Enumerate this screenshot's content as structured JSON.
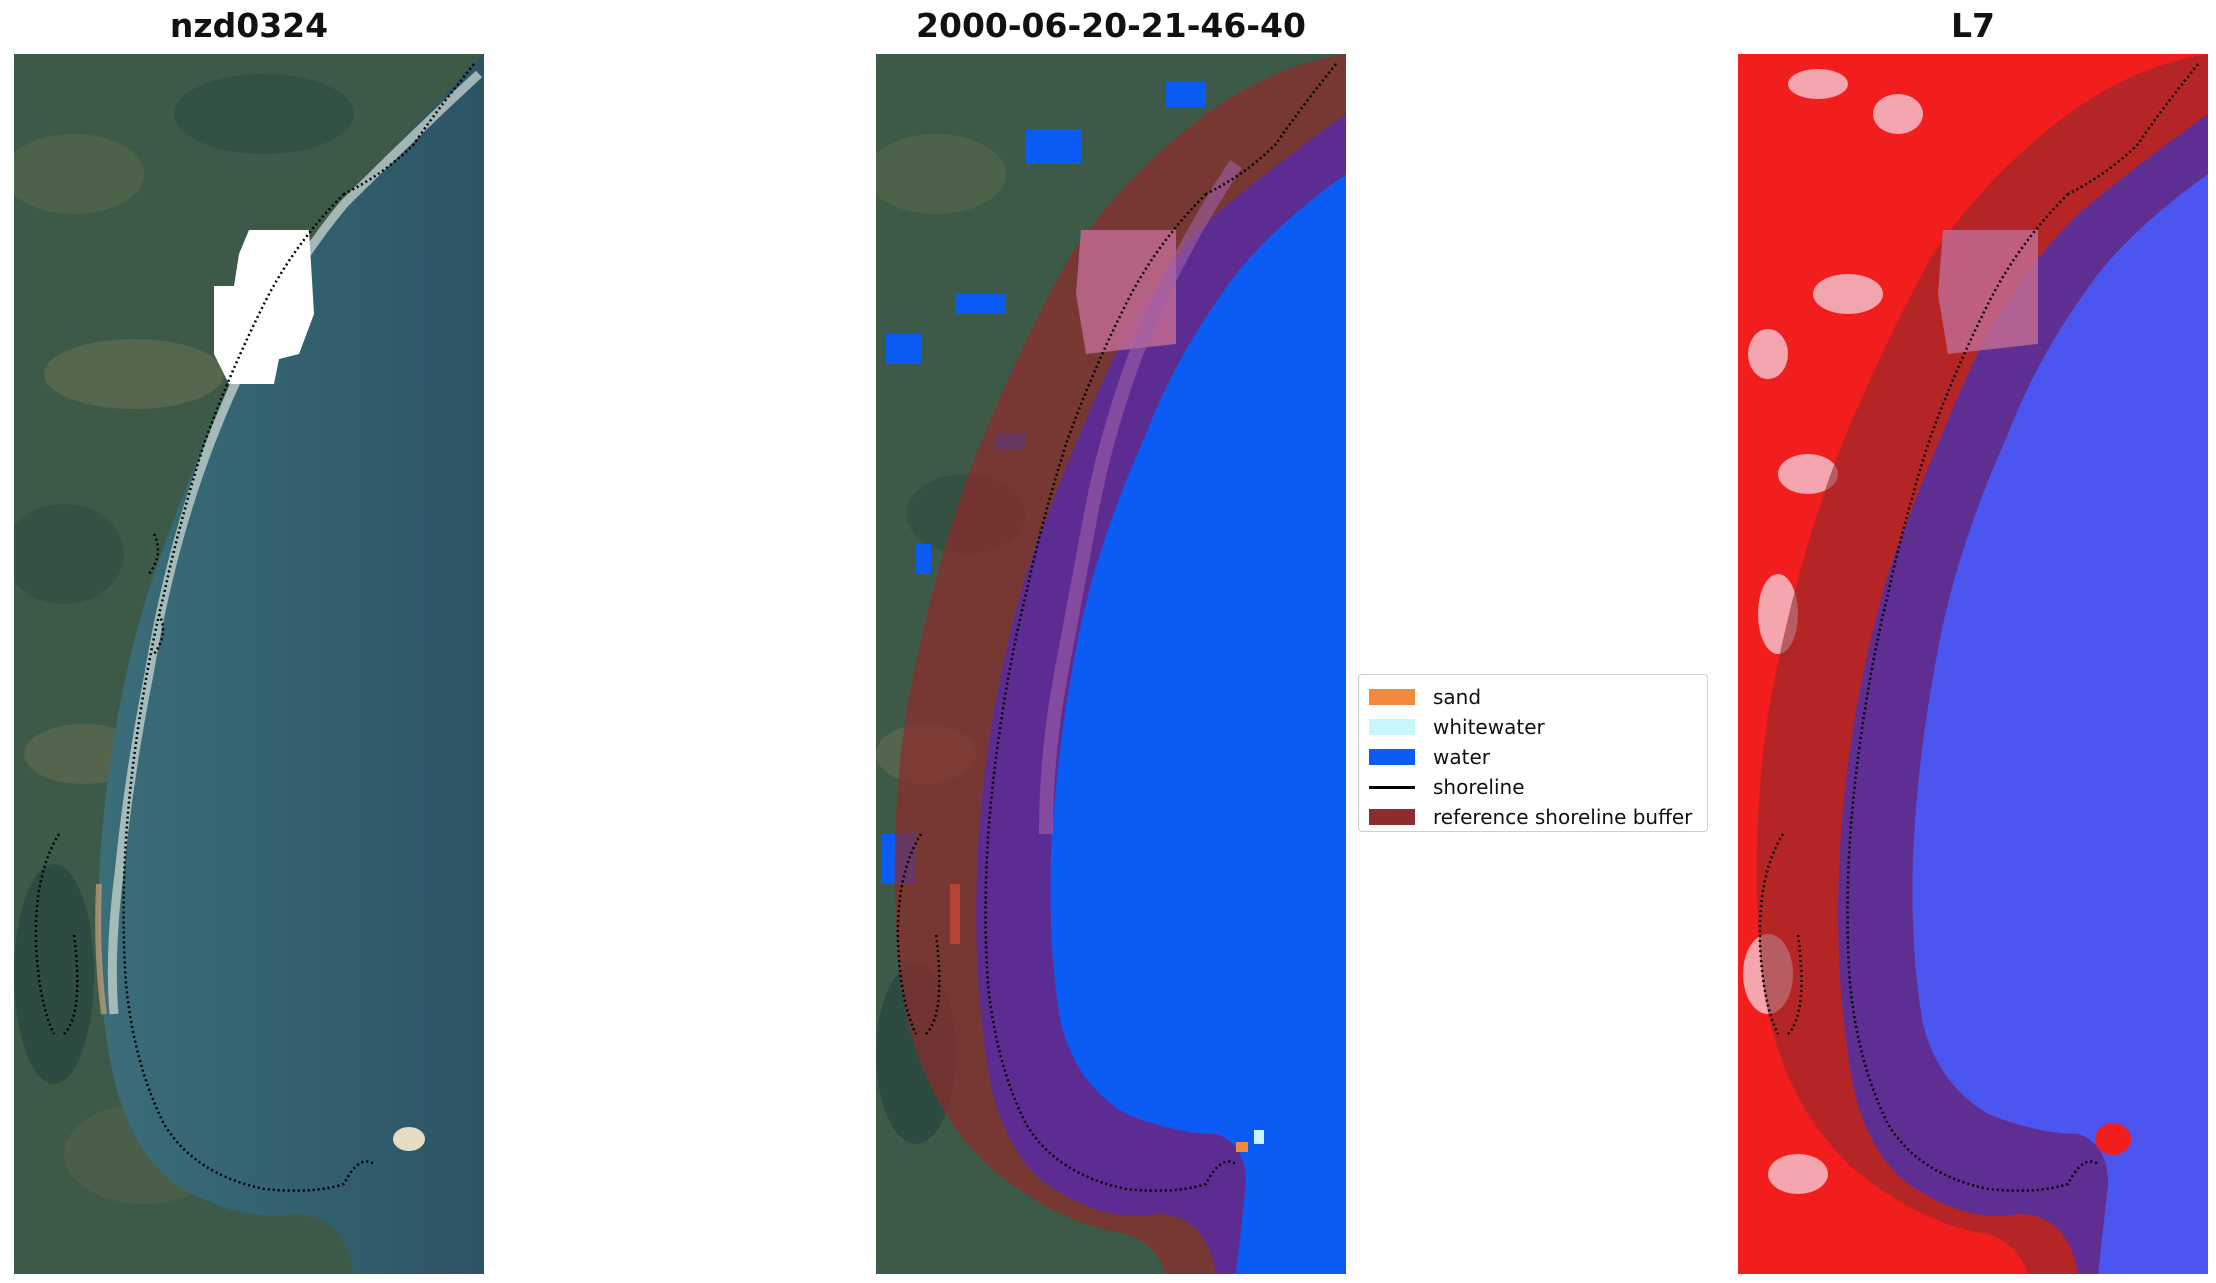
{
  "panels": [
    {
      "title": "nzd0324",
      "kind": "rgb"
    },
    {
      "title": "2000-06-20-21-46-40",
      "kind": "classified"
    },
    {
      "title": "L7",
      "kind": "index"
    }
  ],
  "legend": {
    "items": [
      {
        "label": "sand",
        "color": "#f3893a",
        "shape": "patch"
      },
      {
        "label": "whitewater",
        "color": "#c7f7fa",
        "shape": "patch"
      },
      {
        "label": "water",
        "color": "#0a5cf5",
        "shape": "patch"
      },
      {
        "label": "shoreline",
        "color": "#000000",
        "shape": "line"
      },
      {
        "label": "reference shoreline buffer",
        "color": "#8e2b2d",
        "shape": "patch"
      }
    ]
  },
  "colors": {
    "land_rgb": "#3f5a4e",
    "sea_rgb": "#33606f",
    "water_class": "#0a5cf5",
    "buffer": "#8e2b2d",
    "index_land": "#f21d1d",
    "index_water": "#4b55f0"
  }
}
